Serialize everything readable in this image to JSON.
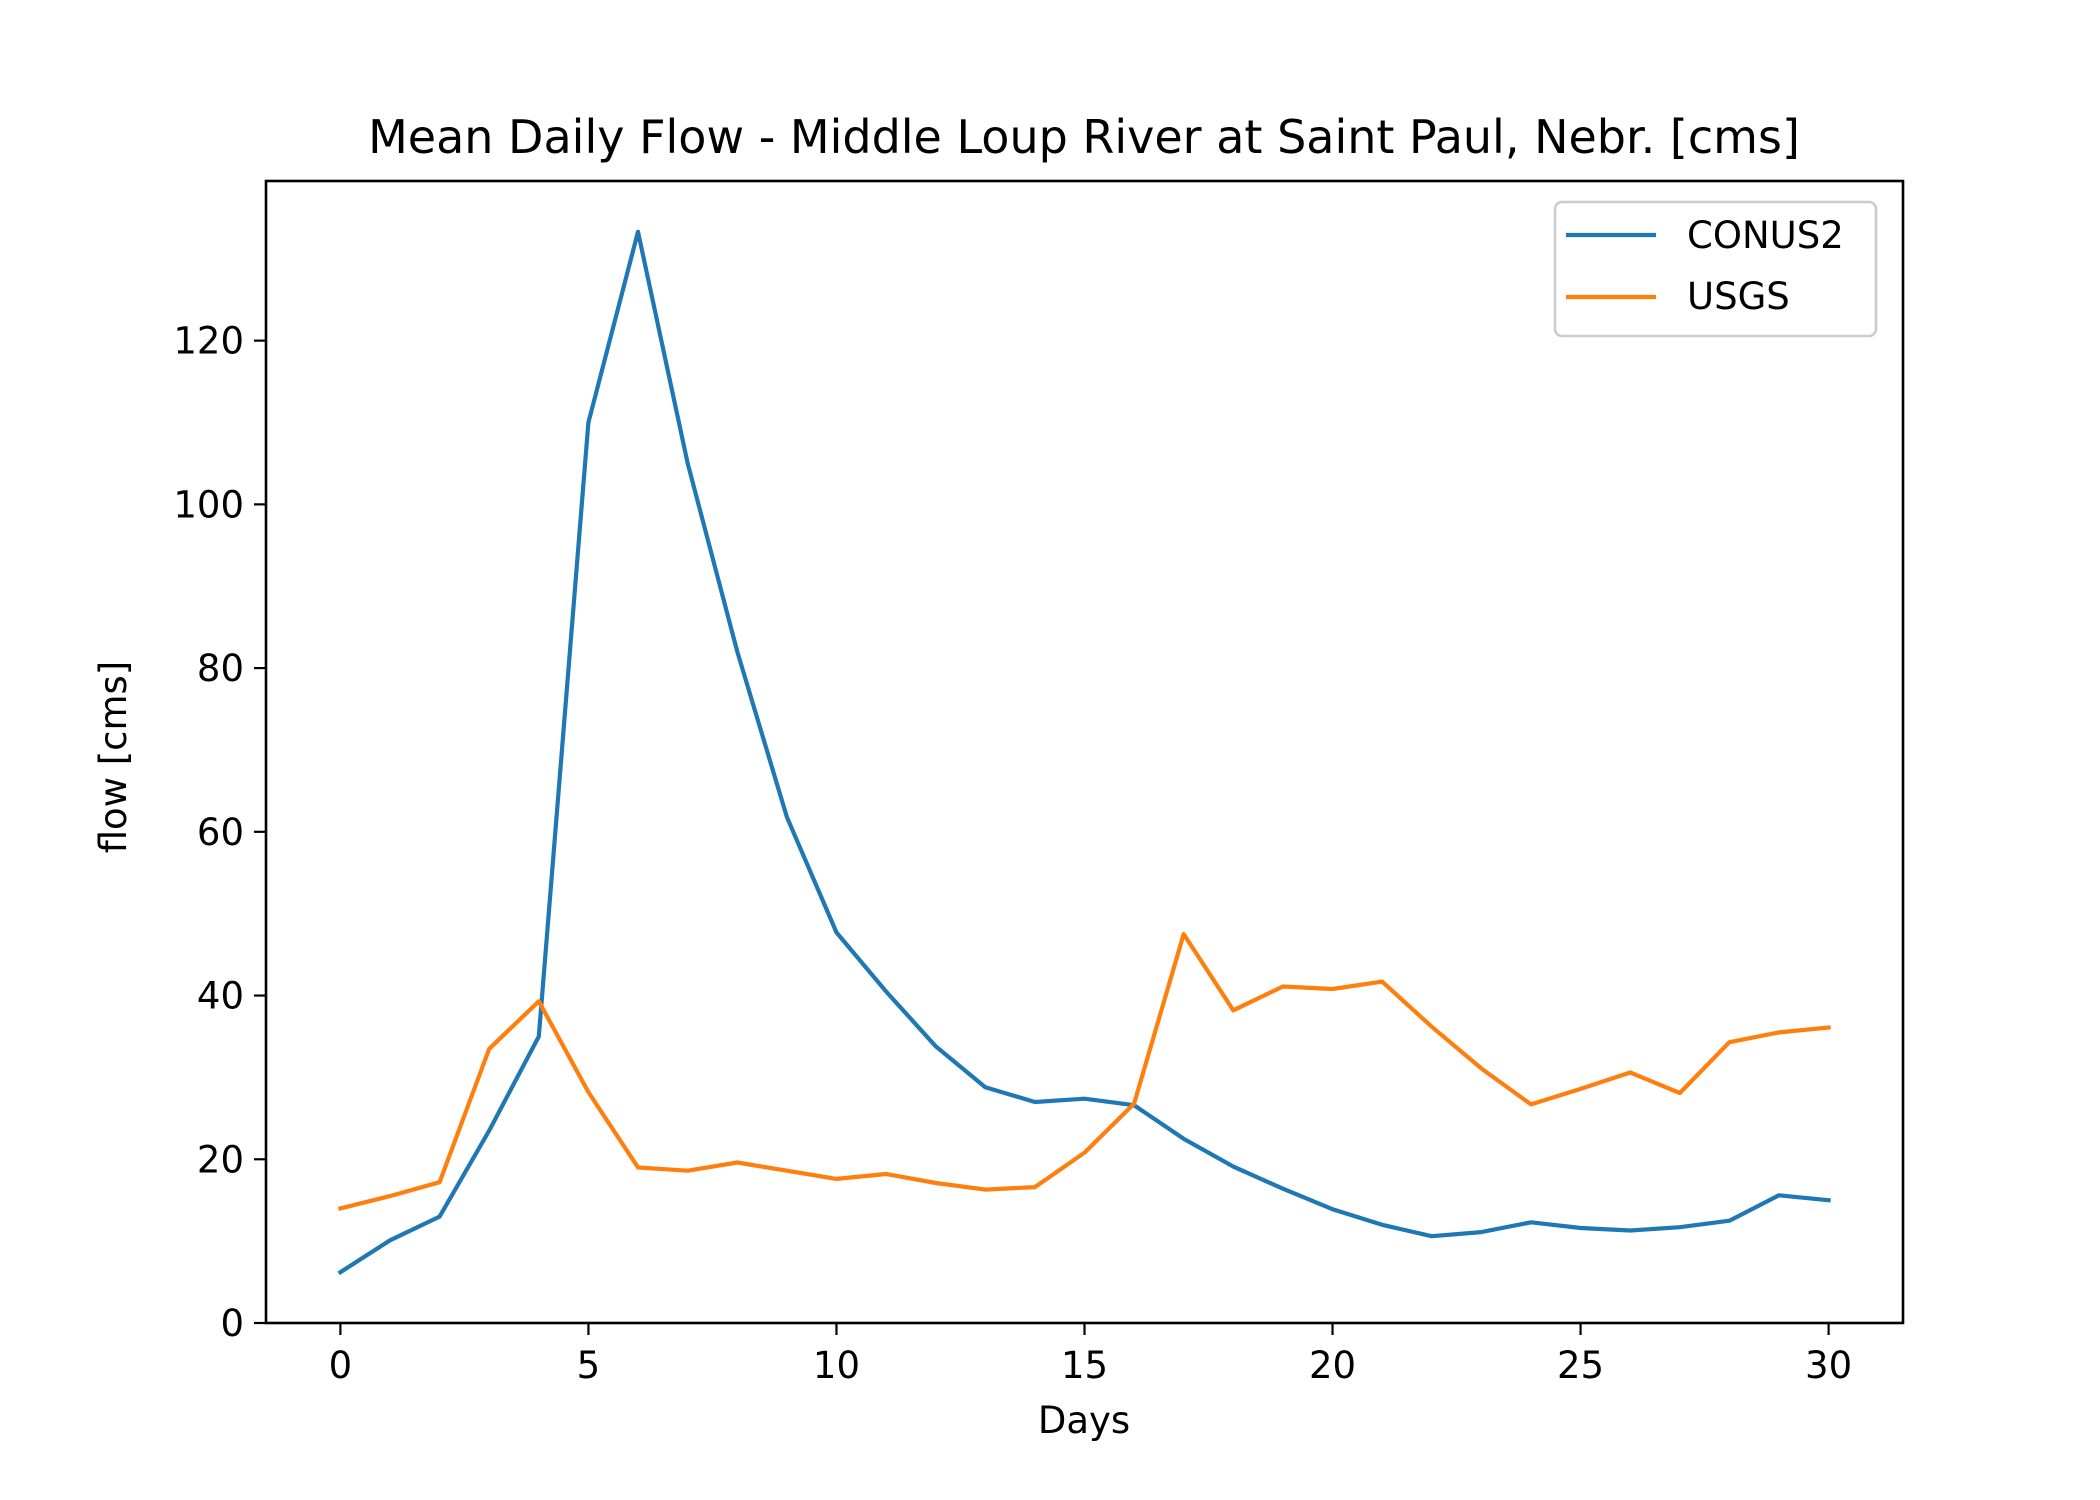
{
  "chart_data": {
    "type": "line",
    "title": "Mean Daily Flow - Middle Loup River at Saint Paul, Nebr. [cms]",
    "xlabel": "Days",
    "ylabel": "flow [cms]",
    "xlim": [
      -1.5,
      31.5
    ],
    "ylim": [
      0,
      139.5
    ],
    "xticks": [
      0,
      5,
      10,
      15,
      20,
      25,
      30
    ],
    "yticks": [
      0,
      20,
      40,
      60,
      80,
      100,
      120
    ],
    "grid": false,
    "legend_position": "top-right",
    "x": [
      0,
      1,
      2,
      3,
      4,
      5,
      6,
      7,
      8,
      9,
      10,
      11,
      12,
      13,
      14,
      15,
      16,
      17,
      18,
      19,
      20,
      21,
      22,
      23,
      24,
      25,
      26,
      27,
      28,
      29,
      30
    ],
    "series": [
      {
        "name": "CONUS2",
        "color": "#1f77b4",
        "values": [
          6.2,
          10.1,
          13.0,
          23.5,
          35.0,
          110.0,
          133.3,
          105.0,
          82.0,
          61.8,
          47.7,
          40.5,
          33.8,
          28.8,
          27.0,
          27.4,
          26.6,
          22.5,
          19.1,
          16.4,
          13.9,
          12.0,
          10.6,
          11.1,
          12.3,
          11.6,
          11.3,
          11.7,
          12.5,
          15.6,
          15.0
        ]
      },
      {
        "name": "USGS",
        "color": "#ff7f0e",
        "values": [
          14.0,
          15.5,
          17.2,
          33.5,
          39.3,
          28.2,
          19.0,
          18.6,
          19.6,
          18.6,
          17.6,
          18.2,
          17.1,
          16.3,
          16.6,
          20.8,
          26.8,
          47.5,
          38.2,
          41.1,
          40.8,
          41.7,
          36.2,
          31.1,
          26.7,
          28.6,
          30.6,
          28.1,
          34.3,
          35.5,
          36.1
        ]
      }
    ]
  }
}
